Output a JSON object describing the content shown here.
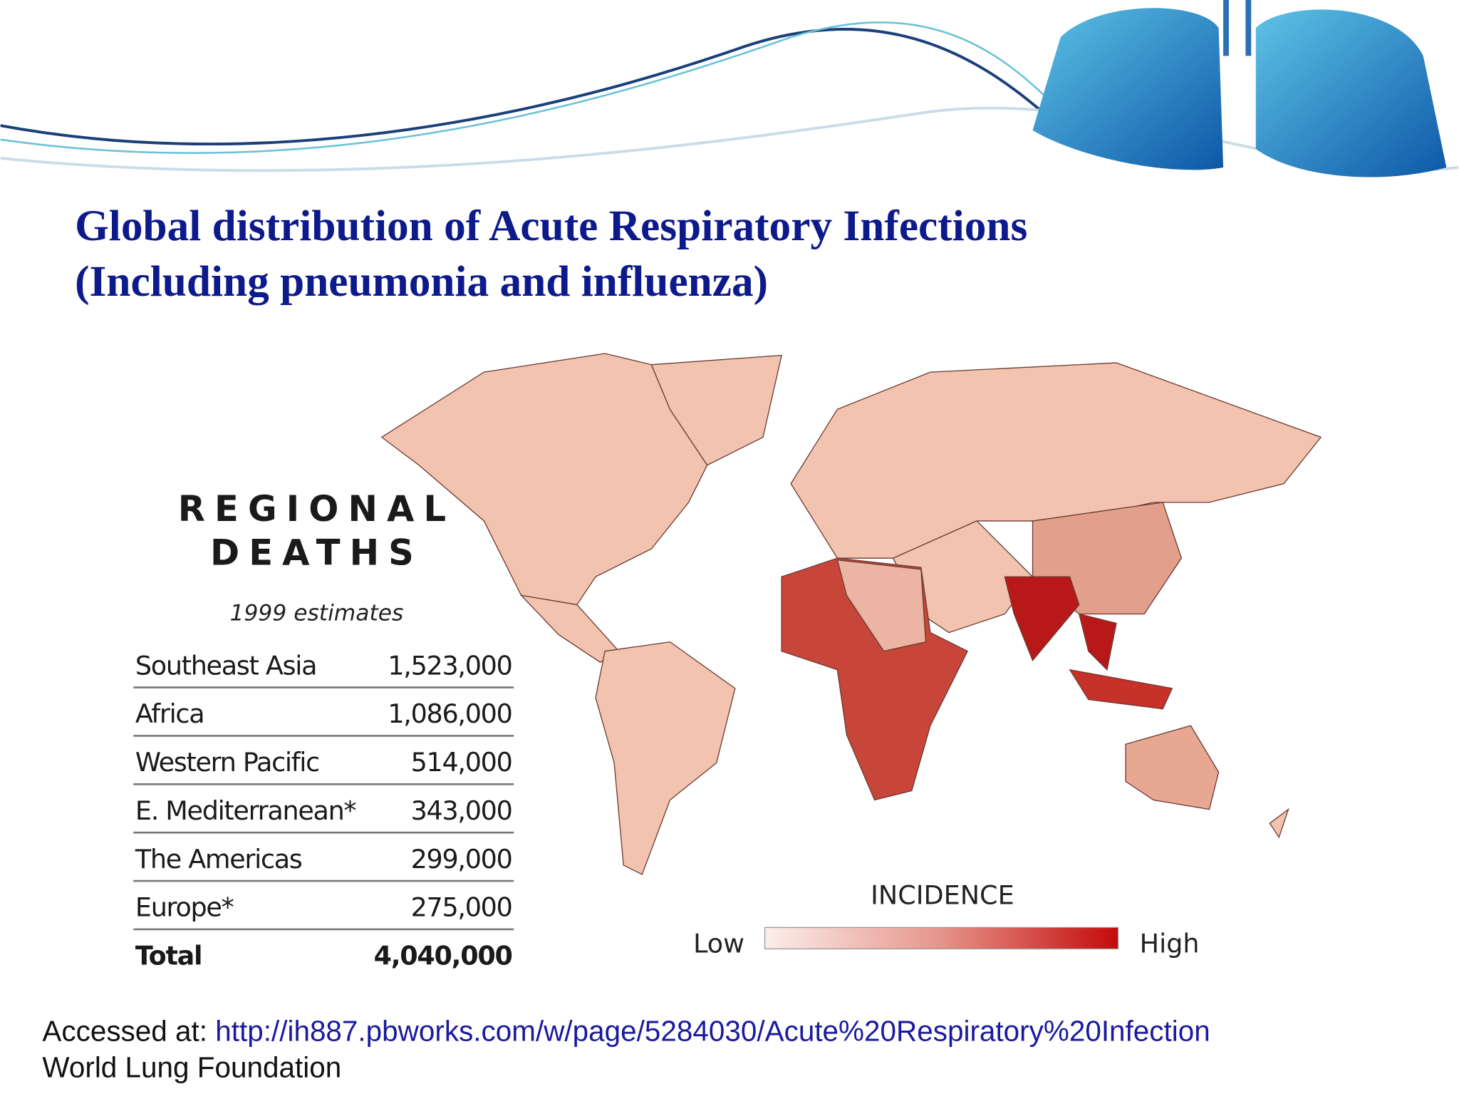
{
  "header": {
    "title_line1": "Global distribution of Acute Respiratory Infections",
    "title_line2": "(Including pneumonia and influenza)"
  },
  "table": {
    "title_line1": "REGIONAL",
    "title_line2": "DEATHS",
    "subtitle": "1999 estimates",
    "rows": [
      [
        "Southeast Asia",
        "1,523,000"
      ],
      [
        "Africa",
        "1,086,000"
      ],
      [
        "Western Pacific",
        "514,000"
      ],
      [
        "E. Mediterranean*",
        "343,000"
      ],
      [
        "The Americas",
        "299,000"
      ],
      [
        "Europe*",
        "275,000"
      ],
      [
        "Total",
        "4,040,000"
      ]
    ]
  },
  "legend": {
    "title": "INCIDENCE",
    "low": "Low",
    "high": "High"
  },
  "footer": {
    "prefix": "Accessed at:",
    "link": "http://ih887.pbworks.com/w/page/5284030/Acute%20Respiratory%20Infection",
    "source": "World Lung Foundation"
  }
}
